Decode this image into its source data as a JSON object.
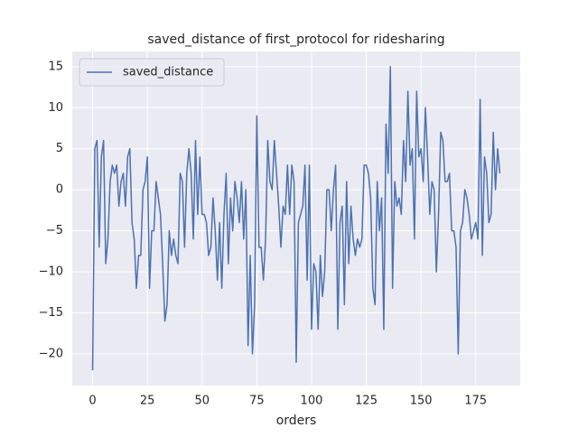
{
  "chart_data": {
    "type": "line",
    "title": "saved_distance of first_protocol for ridesharing",
    "x_label": "orders",
    "x": [
      0,
      1,
      2,
      3,
      4,
      5,
      6,
      7,
      8,
      9,
      10,
      11,
      12,
      13,
      14,
      15,
      16,
      17,
      18,
      19,
      20,
      21,
      22,
      23,
      24,
      25,
      26,
      27,
      28,
      29,
      30,
      31,
      32,
      33,
      34,
      35,
      36,
      37,
      38,
      39,
      40,
      41,
      42,
      43,
      44,
      45,
      46,
      47,
      48,
      49,
      50,
      51,
      52,
      53,
      54,
      55,
      56,
      57,
      58,
      59,
      60,
      61,
      62,
      63,
      64,
      65,
      66,
      67,
      68,
      69,
      70,
      71,
      72,
      73,
      74,
      75,
      76,
      77,
      78,
      79,
      80,
      81,
      82,
      83,
      84,
      85,
      86,
      87,
      88,
      89,
      90,
      91,
      92,
      93,
      94,
      95,
      96,
      97,
      98,
      99,
      100,
      101,
      102,
      103,
      104,
      105,
      106,
      107,
      108,
      109,
      110,
      111,
      112,
      113,
      114,
      115,
      116,
      117,
      118,
      119,
      120,
      121,
      122,
      123,
      124,
      125,
      126,
      127,
      128,
      129,
      130,
      131,
      132,
      133,
      134,
      135,
      136,
      137,
      138,
      139,
      140,
      141,
      142,
      143,
      144,
      145,
      146,
      147,
      148,
      149,
      150,
      151,
      152,
      153,
      154,
      155,
      156,
      157,
      158,
      159,
      160,
      161,
      162,
      163,
      164,
      165,
      166,
      167,
      168,
      169,
      170,
      171,
      172,
      173,
      174,
      175,
      176,
      177,
      178,
      179,
      180,
      181,
      182,
      183,
      184,
      185,
      186
    ],
    "series": [
      {
        "name": "saved_distance",
        "color": "#4c72b0",
        "values": [
          -22,
          5,
          6,
          -7,
          4,
          6,
          -9,
          -6,
          1,
          3,
          2,
          3,
          -2,
          1,
          2,
          -2,
          4,
          5,
          -4,
          -6,
          -12,
          -8,
          -8,
          0,
          1,
          4,
          -12,
          -5,
          -5,
          1,
          -1,
          -3,
          -9,
          -16,
          -14,
          -5,
          -8,
          -6,
          -8,
          -9,
          2,
          1,
          -7,
          2,
          5,
          2,
          -6,
          6,
          -3,
          4,
          -3,
          -3,
          -4,
          -8,
          -7,
          -1,
          -5,
          -11,
          -4,
          -12,
          -3,
          2,
          -9,
          -1,
          -5,
          1,
          -1,
          -4,
          1,
          -6,
          0,
          -19,
          -8,
          -20,
          -14,
          9,
          -7,
          -7,
          -11,
          -6,
          6,
          1,
          0,
          6,
          2,
          -2,
          -7,
          -2,
          -3,
          3,
          -3,
          3,
          1,
          -21,
          -4,
          -3,
          -2,
          3,
          -11,
          3,
          -17,
          -9,
          -10,
          -17,
          -8,
          -13,
          -10,
          0,
          0,
          -5,
          0,
          3,
          -17,
          -4,
          -2,
          -14,
          1,
          -9,
          -2,
          -6,
          -8,
          -6,
          -7,
          -6,
          3,
          3,
          2,
          -1,
          -12,
          -14,
          1,
          -5,
          -1,
          -17,
          8,
          2,
          15,
          -12,
          1,
          -2,
          -1,
          -3,
          6,
          1,
          12,
          3,
          5,
          -6,
          12,
          4,
          5,
          1,
          10,
          4,
          -3,
          1,
          0,
          -10,
          -3,
          7,
          6,
          1,
          1,
          2,
          -5,
          -5,
          -7,
          -20,
          -5,
          -4,
          0,
          -1,
          -3,
          -6,
          -5,
          -4,
          -6,
          11,
          -8,
          4,
          2,
          -4,
          -3,
          7,
          0,
          5,
          2
        ]
      }
    ],
    "xlim": [
      -9.3,
      195.3
    ],
    "xticks": [
      0,
      25,
      50,
      75,
      100,
      125,
      150,
      175
    ],
    "ylim": [
      -23.85,
      16.85
    ],
    "yticks": [
      {
        "value": -20,
        "label": "−20"
      },
      {
        "value": -15,
        "label": "−15"
      },
      {
        "value": -10,
        "label": "−10"
      },
      {
        "value": -5,
        "label": "−5"
      },
      0,
      5,
      10,
      15
    ],
    "grid": true,
    "legend": "upper left"
  }
}
